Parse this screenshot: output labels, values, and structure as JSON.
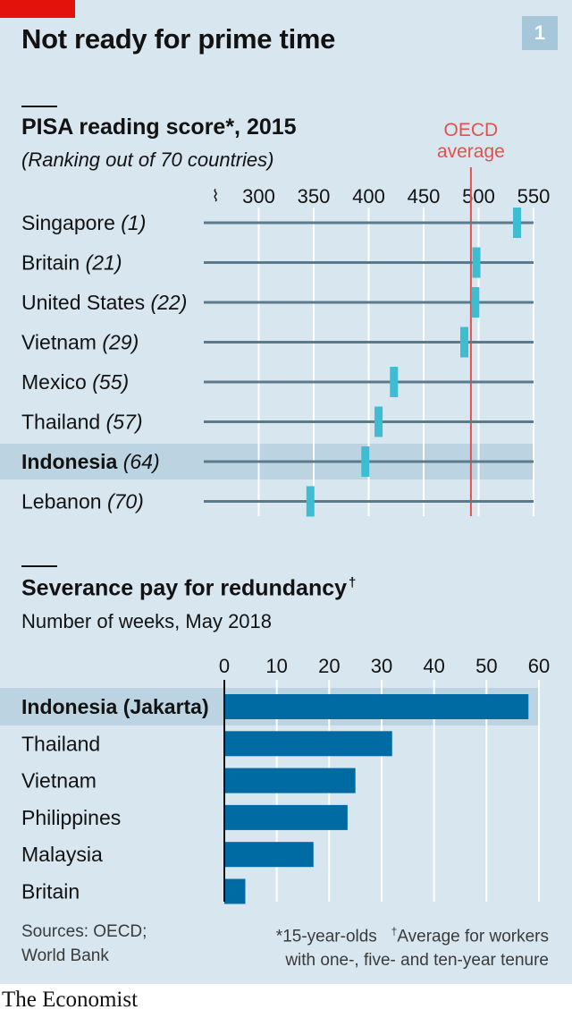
{
  "header": {
    "title": "Not ready for prime time",
    "number": "1"
  },
  "brand": "The Economist",
  "colors": {
    "panel": "#d8e6ef",
    "accent_red": "#e3120b",
    "bar_blue": "#006ba2",
    "marker_cyan": "#3ebcd2",
    "oecd_line": "#e3514c"
  },
  "footer": {
    "sources_line1": "Sources: OECD;",
    "sources_line2": "World Bank",
    "note1": "*15-year-olds",
    "note2_mark": "†",
    "note2_line1": "Average for workers",
    "note2_line2": "with one-, five- and ten-year tenure"
  },
  "chart_data": [
    {
      "type": "scatter",
      "title": "PISA reading score*, 2015",
      "subtitle": "(Ranking out of 70 countries)",
      "axis_break_symbol": "⌇",
      "xlim": [
        250,
        550
      ],
      "ticks": [
        300,
        350,
        400,
        450,
        500,
        550
      ],
      "reference_line": {
        "label_line1": "OECD",
        "label_line2": "average",
        "value": 493
      },
      "highlight": "Indonesia",
      "rows": [
        {
          "country": "Singapore",
          "rank": "(1)",
          "value": 535
        },
        {
          "country": "Britain",
          "rank": "(21)",
          "value": 498
        },
        {
          "country": "United States",
          "rank": "(22)",
          "value": 497
        },
        {
          "country": "Vietnam",
          "rank": "(29)",
          "value": 487
        },
        {
          "country": "Mexico",
          "rank": "(55)",
          "value": 423
        },
        {
          "country": "Thailand",
          "rank": "(57)",
          "value": 409
        },
        {
          "country": "Indonesia",
          "rank": "(64)",
          "value": 397
        },
        {
          "country": "Lebanon",
          "rank": "(70)",
          "value": 347
        }
      ]
    },
    {
      "type": "bar",
      "title": "Severance pay for redundancy",
      "title_mark": "†",
      "subtitle": "Number of weeks, May 2018",
      "xlim": [
        0,
        60
      ],
      "ticks": [
        0,
        10,
        20,
        30,
        40,
        50,
        60
      ],
      "highlight": "Indonesia (Jakarta)",
      "categories": [
        "Indonesia (Jakarta)",
        "Thailand",
        "Vietnam",
        "Philippines",
        "Malaysia",
        "Britain"
      ],
      "values": [
        58,
        32,
        25,
        23.5,
        17,
        4
      ]
    }
  ]
}
